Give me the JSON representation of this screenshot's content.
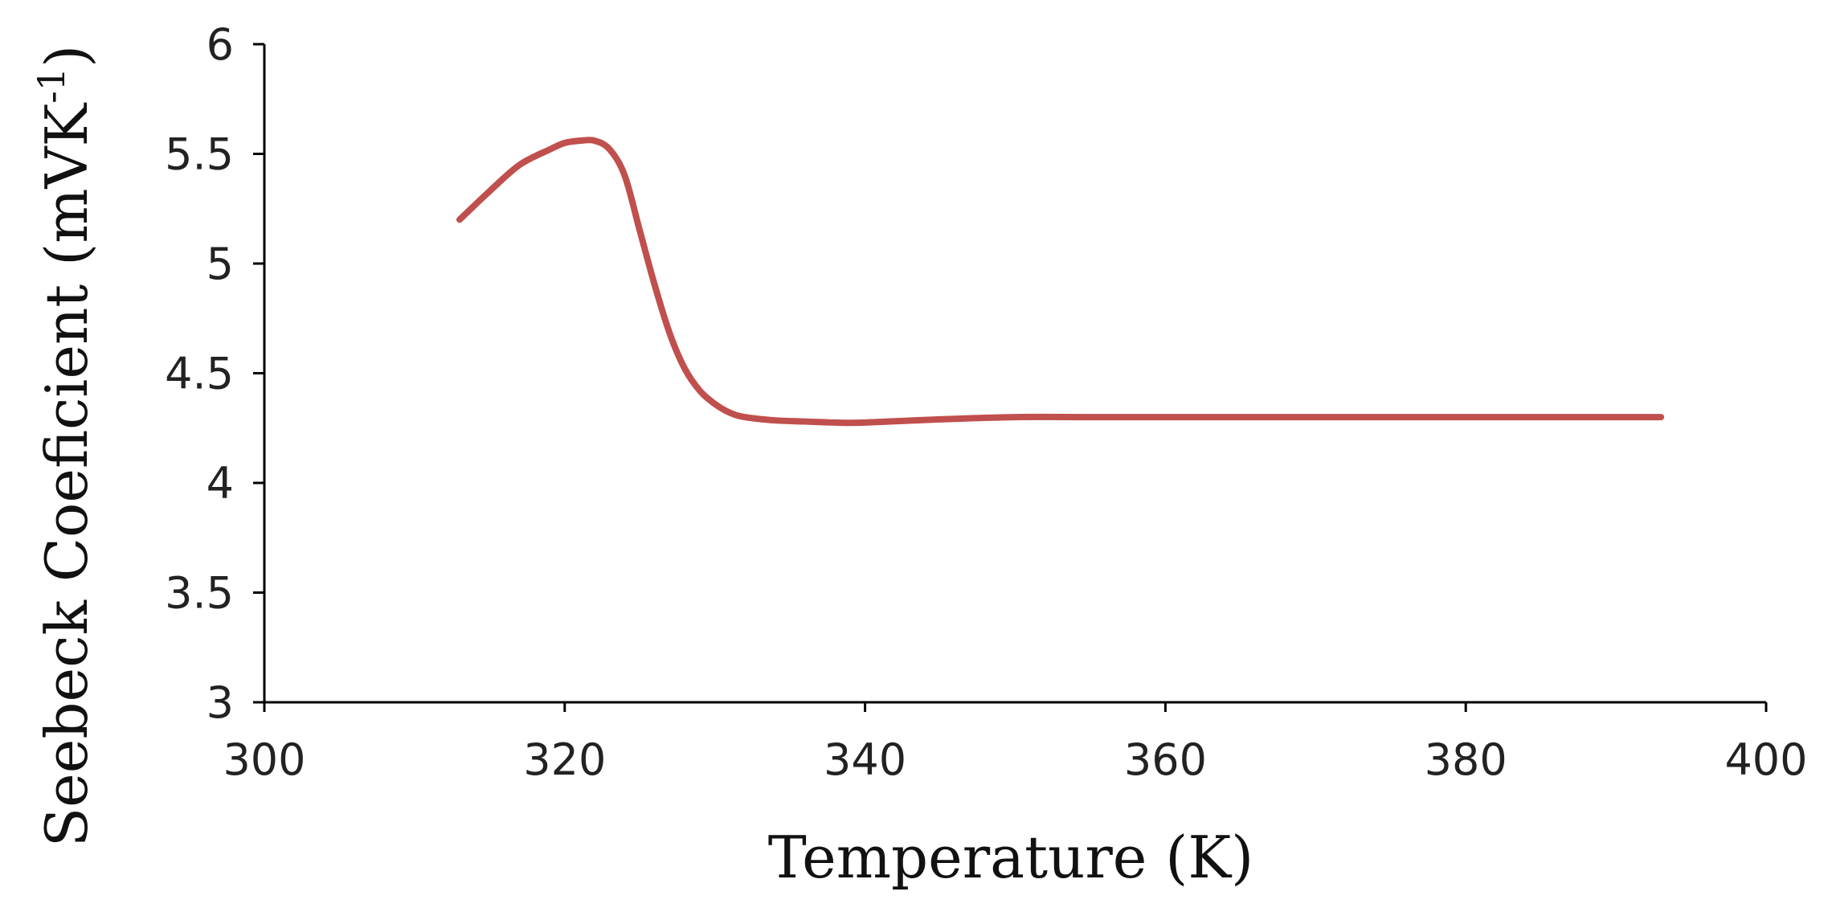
{
  "chart_data": {
    "type": "line",
    "xlabel": "Temperature (K)",
    "ylabel": "Seebeck Coeficient (mVK",
    "ylabel_superscript": "-1",
    "ylabel_close": ")",
    "xlim": [
      300,
      400
    ],
    "ylim": [
      3,
      6
    ],
    "x_ticks": [
      300,
      320,
      340,
      360,
      380,
      400
    ],
    "y_ticks": [
      "3",
      "3.5",
      "4",
      "4.5",
      "5",
      "5.5",
      "6"
    ],
    "grid": false,
    "series": [
      {
        "color": "#c0504d",
        "x": [
          313,
          315,
          317,
          319,
          320,
          321,
          322,
          323,
          324,
          325,
          326,
          327,
          328,
          329,
          330,
          331,
          332,
          334,
          336,
          338,
          340,
          345,
          350,
          355,
          360,
          370,
          380,
          393
        ],
        "y": [
          5.2,
          5.33,
          5.45,
          5.52,
          5.55,
          5.56,
          5.56,
          5.52,
          5.4,
          5.15,
          4.9,
          4.68,
          4.52,
          4.42,
          4.36,
          4.32,
          4.3,
          4.285,
          4.28,
          4.275,
          4.275,
          4.29,
          4.3,
          4.3,
          4.3,
          4.3,
          4.3,
          4.3
        ]
      }
    ]
  }
}
